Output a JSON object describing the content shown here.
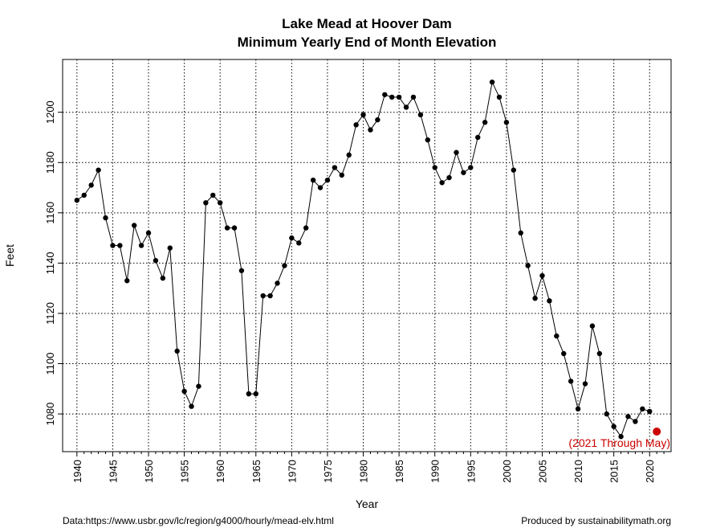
{
  "chart_data": {
    "type": "line",
    "title": "Lake Mead at Hoover Dam",
    "subtitle": "Minimum Yearly End of Month Elevation",
    "xlabel": "Year",
    "ylabel": "Feet",
    "xlim": [
      1938,
      2023
    ],
    "ylim": [
      1065,
      1221
    ],
    "x_ticks": [
      1940,
      1945,
      1950,
      1955,
      1960,
      1965,
      1970,
      1975,
      1980,
      1985,
      1990,
      1995,
      2000,
      2005,
      2010,
      2015,
      2020
    ],
    "x_tick_labels": [
      "1940",
      "1945",
      "1950",
      "1955",
      "1960",
      "1965",
      "1970",
      "1975",
      "1980",
      "1985",
      "1990",
      "1995",
      "2000",
      "2005",
      "2010",
      "2015",
      "2020"
    ],
    "y_ticks": [
      1080,
      1100,
      1120,
      1140,
      1160,
      1180,
      1200
    ],
    "y_tick_labels": [
      "1080",
      "1100",
      "1120",
      "1140",
      "1160",
      "1180",
      "1200"
    ],
    "grid": true,
    "series": [
      {
        "color": "#000000",
        "x": [
          1940,
          1941,
          1942,
          1943,
          1944,
          1945,
          1946,
          1947,
          1948,
          1949,
          1950,
          1951,
          1952,
          1953,
          1954,
          1955,
          1956,
          1957,
          1958,
          1959,
          1960,
          1961,
          1962,
          1963,
          1964,
          1965,
          1966,
          1967,
          1968,
          1969,
          1970,
          1971,
          1972,
          1973,
          1974,
          1975,
          1976,
          1977,
          1978,
          1979,
          1980,
          1981,
          1982,
          1983,
          1984,
          1985,
          1986,
          1987,
          1988,
          1989,
          1990,
          1991,
          1992,
          1993,
          1994,
          1995,
          1996,
          1997,
          1998,
          1999,
          2000,
          2001,
          2002,
          2003,
          2004,
          2005,
          2006,
          2007,
          2008,
          2009,
          2010,
          2011,
          2012,
          2013,
          2014,
          2015,
          2016,
          2017,
          2018,
          2019,
          2020
        ],
        "y": [
          1165,
          1167,
          1171,
          1177,
          1158,
          1147,
          1147,
          1133,
          1155,
          1147,
          1152,
          1141,
          1134,
          1146,
          1105,
          1089,
          1083,
          1091,
          1164,
          1167,
          1164,
          1154,
          1154,
          1137,
          1088,
          1088,
          1127,
          1127,
          1132,
          1139,
          1150,
          1148,
          1154,
          1173,
          1170,
          1173,
          1178,
          1175,
          1183,
          1195,
          1199,
          1193,
          1197,
          1207,
          1206,
          1206,
          1202,
          1206,
          1199,
          1189,
          1178,
          1172,
          1174,
          1184,
          1176,
          1178,
          1190,
          1196,
          1212,
          1206,
          1196,
          1177,
          1152,
          1139,
          1126,
          1135,
          1125,
          1111,
          1104,
          1093,
          1082,
          1092,
          1115,
          1104,
          1080,
          1075,
          1071,
          1079,
          1077,
          1082,
          1081
        ]
      },
      {
        "color": "#cc0000",
        "x": [
          2021
        ],
        "y": [
          1073
        ]
      }
    ],
    "annotations": [
      {
        "text": "(2021 Through May)",
        "color": "#cc0000"
      }
    ]
  },
  "footer": {
    "left": "Data:https://www.usbr.gov/lc/region/g4000/hourly/mead-elv.html",
    "right": "Produced by sustainabilitymath.org"
  }
}
